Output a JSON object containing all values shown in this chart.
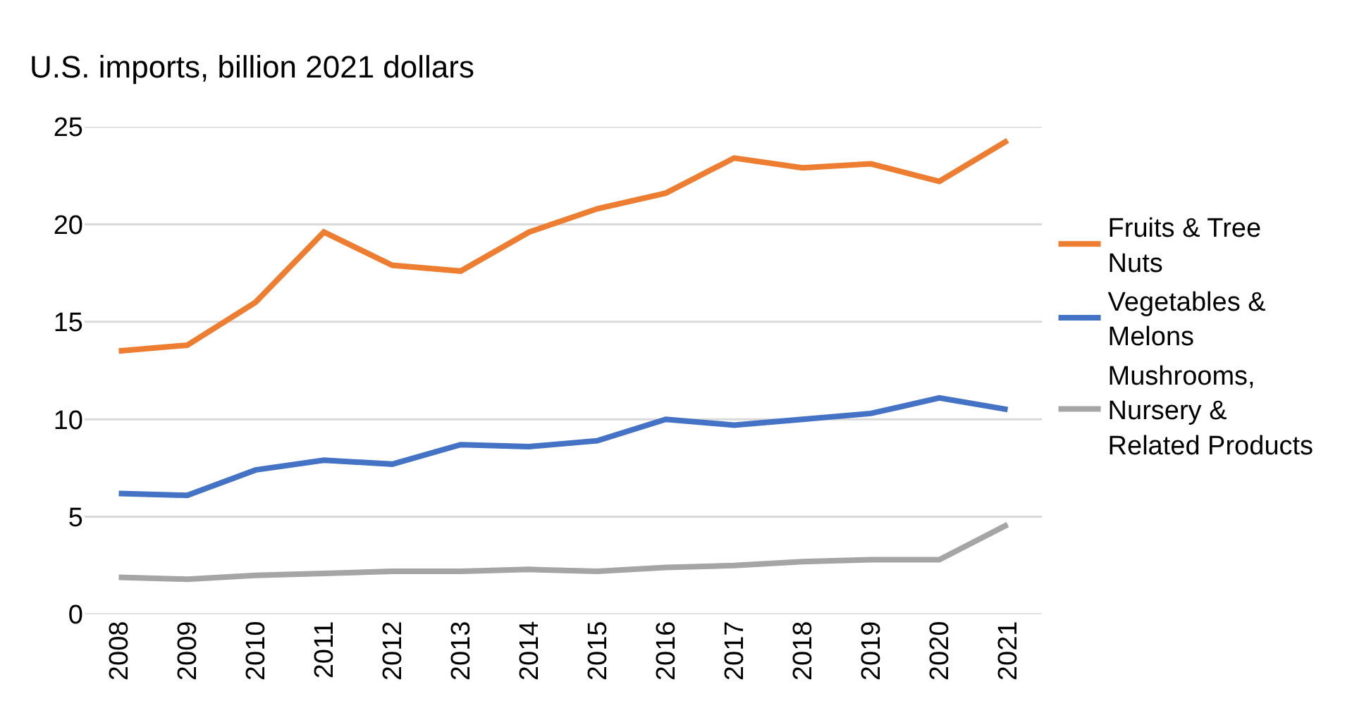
{
  "chart_data": {
    "type": "line",
    "ylabel": "U.S. imports, billion 2021 dollars",
    "categories": [
      "2008",
      "2009",
      "2010",
      "2011",
      "2012",
      "2013",
      "2014",
      "2015",
      "2016",
      "2017",
      "2018",
      "2019",
      "2020",
      "2021"
    ],
    "series": [
      {
        "name": "Fruits & Tree Nuts",
        "color": "#ed7d31",
        "values": [
          13.5,
          13.8,
          16.0,
          19.6,
          17.9,
          17.6,
          19.6,
          20.8,
          21.6,
          23.4,
          22.9,
          23.1,
          22.2,
          24.3
        ]
      },
      {
        "name": "Vegetables & Melons",
        "color": "#4472c4",
        "values": [
          6.2,
          6.1,
          7.4,
          7.9,
          7.7,
          8.7,
          8.6,
          8.9,
          10.0,
          9.7,
          10.0,
          10.3,
          11.1,
          10.5
        ]
      },
      {
        "name": "Mushrooms, Nursery & Related Products",
        "color": "#a5a5a5",
        "values": [
          1.9,
          1.8,
          2.0,
          2.1,
          2.2,
          2.2,
          2.3,
          2.2,
          2.4,
          2.5,
          2.7,
          2.8,
          2.8,
          4.6
        ]
      }
    ],
    "ylim": [
      0,
      25
    ],
    "yticks": [
      0,
      5,
      10,
      15,
      20,
      25
    ],
    "grid": "y",
    "legend": "right",
    "marker": "none",
    "line_style": "solid"
  }
}
